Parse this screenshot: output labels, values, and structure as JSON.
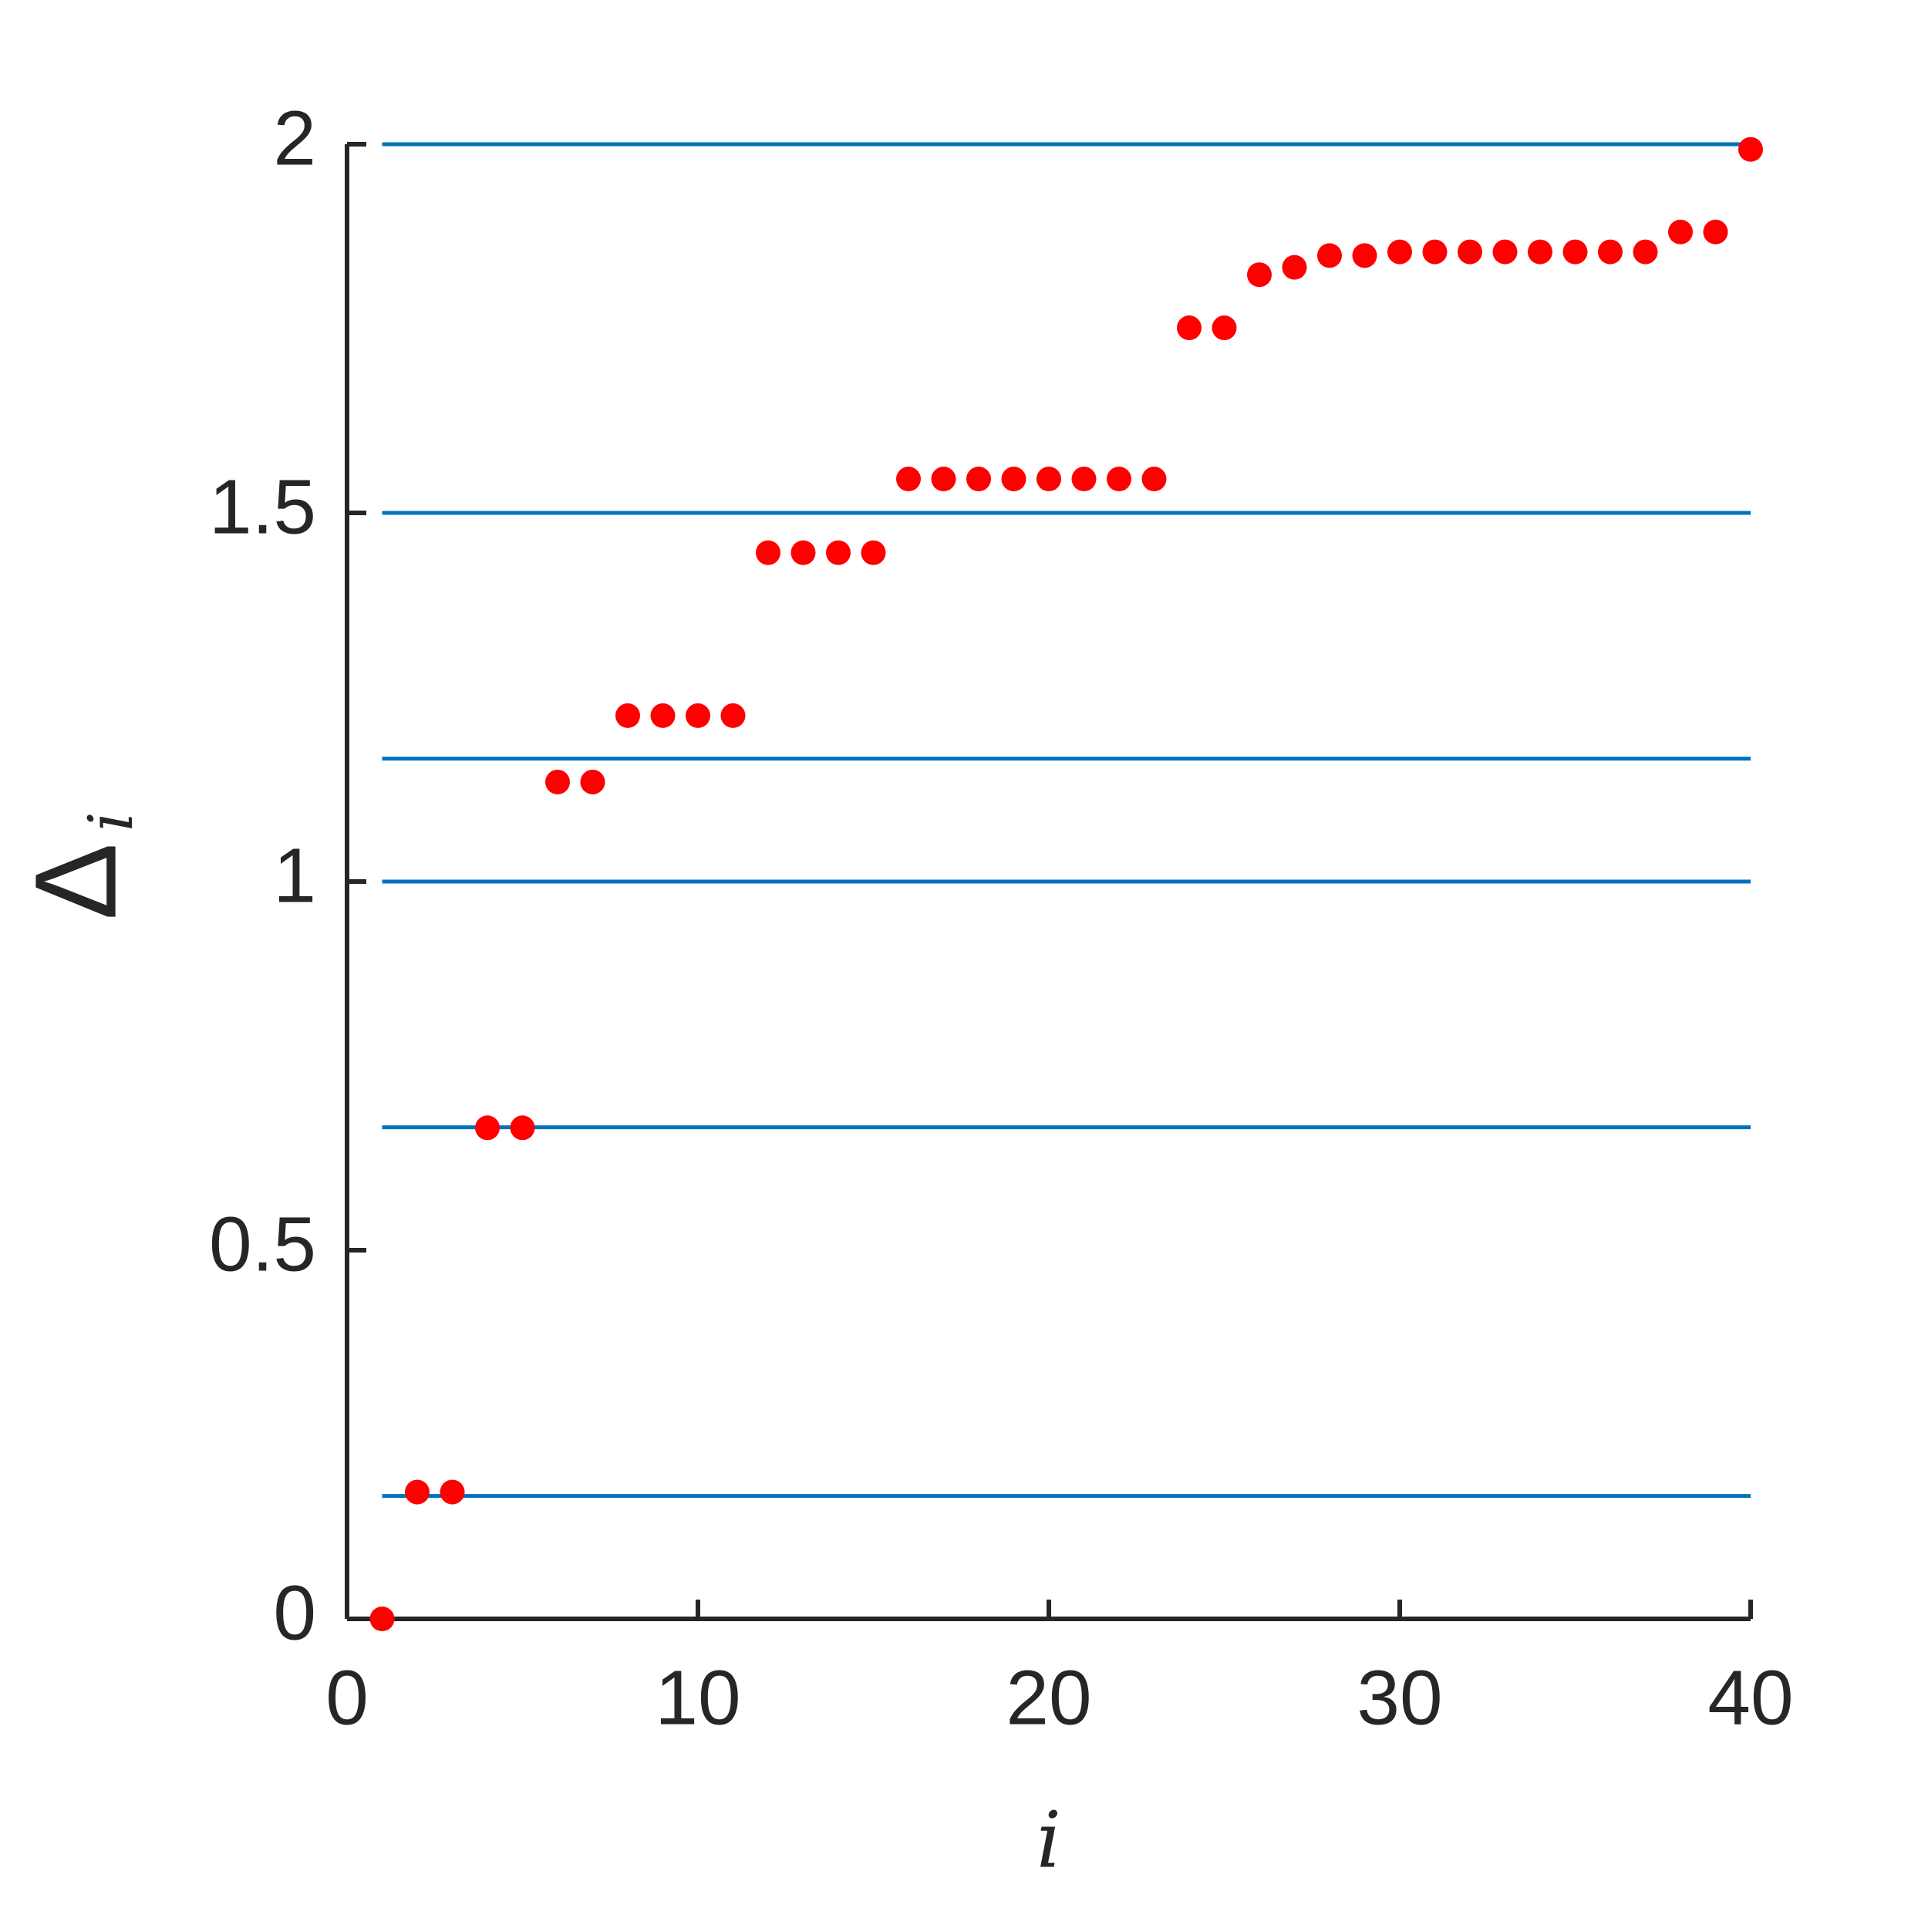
{
  "chart_data": {
    "type": "scatter",
    "xlabel": "i",
    "ylabel_symbol": "Δ",
    "ylabel_subscript": "i",
    "x": [
      1,
      2,
      3,
      4,
      5,
      6,
      7,
      8,
      9,
      10,
      11,
      12,
      13,
      14,
      15,
      16,
      17,
      18,
      19,
      20,
      21,
      22,
      23,
      24,
      25,
      26,
      27,
      28,
      29,
      30,
      31,
      32,
      33,
      34,
      35,
      36,
      37,
      38,
      39,
      40
    ],
    "series": [
      {
        "color": "#ff0000",
        "values": [
          0,
          0.172,
          0.172,
          0.666,
          0.666,
          1.135,
          1.135,
          1.225,
          1.225,
          1.225,
          1.225,
          1.446,
          1.446,
          1.446,
          1.446,
          1.546,
          1.546,
          1.546,
          1.546,
          1.546,
          1.546,
          1.546,
          1.546,
          1.751,
          1.751,
          1.823,
          1.833,
          1.849,
          1.849,
          1.854,
          1.854,
          1.854,
          1.854,
          1.854,
          1.854,
          1.854,
          1.854,
          1.881,
          1.881,
          1.993
        ]
      }
    ],
    "hlines": {
      "color": "#0072bd",
      "values": [
        0,
        0.1667,
        0.6667,
        1,
        1.1667,
        1.5,
        2
      ]
    },
    "xlim": [
      0,
      40
    ],
    "xticks": [
      0,
      10,
      20,
      30,
      40
    ],
    "ylim": [
      0,
      2
    ],
    "yticks": [
      0,
      0.5,
      1,
      1.5,
      2
    ]
  }
}
